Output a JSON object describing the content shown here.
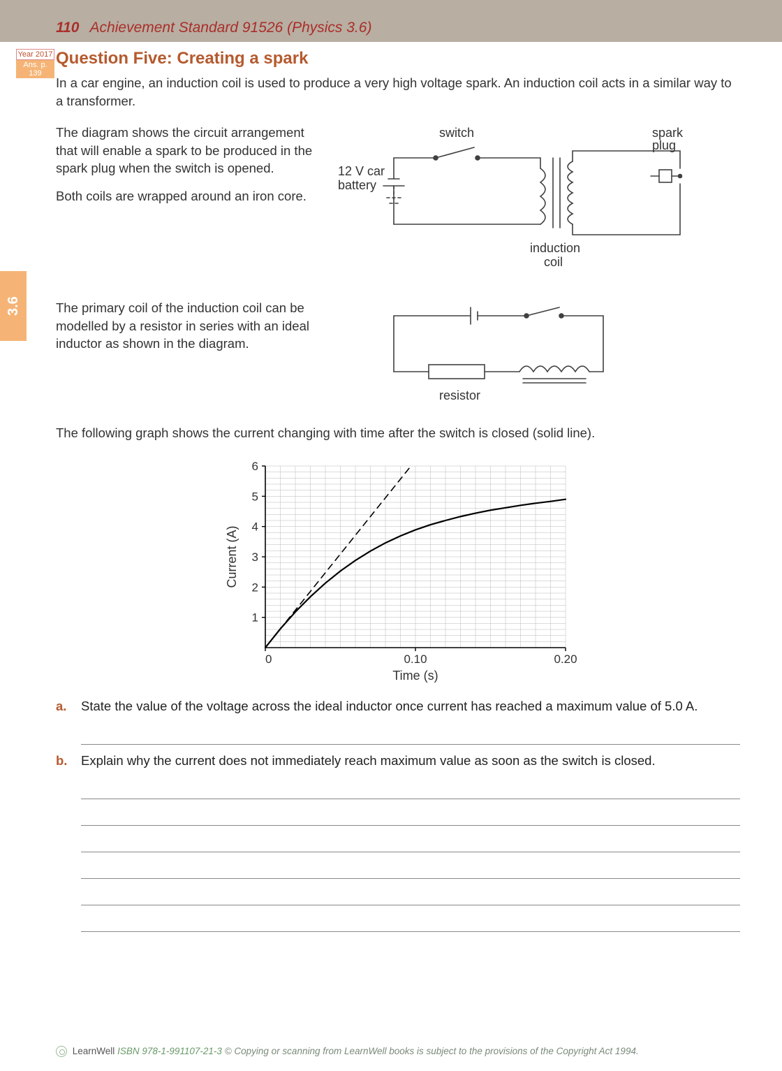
{
  "header": {
    "page_number": "110",
    "title": "Achievement Standard 91526 (Physics 3.6)"
  },
  "sidetab": "3.6",
  "yearbox": {
    "line1": "Year 2017",
    "line2": "Ans. p. 139"
  },
  "question": {
    "title": "Question Five: Creating a spark",
    "intro": "In a car engine, an induction coil is used to produce a very high voltage spark. An induction coil acts in a similar way to a transformer.",
    "para2a": "The diagram shows the circuit arrangement that will enable a spark to be produced in the spark plug when the switch is opened.",
    "para2b": "Both coils are wrapped around an iron core.",
    "para3": "The primary coil of the induction coil can be modelled by a resistor in series with an ideal inductor as shown in the diagram.",
    "para4": "The following graph shows the current changing with time after the switch is closed (solid line)."
  },
  "diagram1": {
    "labels": {
      "switch": "switch",
      "battery1": "12 V car",
      "battery2": "battery",
      "spark1": "spark",
      "spark2": "plug",
      "coil1": "induction",
      "coil2": "coil"
    },
    "stroke": "#404040"
  },
  "diagram2": {
    "label_resistor": "resistor",
    "stroke": "#404040"
  },
  "chart": {
    "type": "line",
    "xlabel": "Time (s)",
    "ylabel": "Current (A)",
    "xlim": [
      0,
      0.2
    ],
    "ylim": [
      0,
      6
    ],
    "xticks": [
      0,
      0.1,
      0.2
    ],
    "xtick_labels": [
      "0",
      "0.10",
      "0.20"
    ],
    "yticks": [
      1,
      2,
      3,
      4,
      5,
      6
    ],
    "minor_x_divisions": 20,
    "minor_y_divisions_per_unit": 5,
    "grid_color": "#b8b8b8",
    "axis_color": "#000000",
    "background_color": "#ffffff",
    "series": [
      {
        "name": "current",
        "style": "solid",
        "color": "#000000",
        "line_width": 2.2,
        "points": [
          [
            0,
            0
          ],
          [
            0.01,
            0.62
          ],
          [
            0.02,
            1.18
          ],
          [
            0.03,
            1.68
          ],
          [
            0.04,
            2.13
          ],
          [
            0.05,
            2.53
          ],
          [
            0.06,
            2.88
          ],
          [
            0.07,
            3.19
          ],
          [
            0.08,
            3.46
          ],
          [
            0.09,
            3.69
          ],
          [
            0.1,
            3.89
          ],
          [
            0.11,
            4.06
          ],
          [
            0.12,
            4.2
          ],
          [
            0.13,
            4.33
          ],
          [
            0.14,
            4.44
          ],
          [
            0.15,
            4.54
          ],
          [
            0.16,
            4.62
          ],
          [
            0.17,
            4.7
          ],
          [
            0.18,
            4.77
          ],
          [
            0.19,
            4.83
          ],
          [
            0.2,
            4.9
          ]
        ]
      },
      {
        "name": "initial-slope",
        "style": "dashed",
        "color": "#000000",
        "line_width": 1.6,
        "points": [
          [
            0,
            0
          ],
          [
            0.097,
            6.0
          ]
        ]
      }
    ],
    "label_fontsize": 18,
    "tick_fontsize": 17
  },
  "parts": {
    "a": "State the value of the voltage across the ideal inductor once current has reached a maximum value of 5.0 A.",
    "b": "Explain why the current does not immediately reach maximum value as soon as the switch is closed."
  },
  "answer_lines": {
    "a": 1,
    "b": 6
  },
  "footer": {
    "brand": "LearnWell",
    "isbn": "ISBN 978-1-991107-21-3",
    "notice": "© Copying or scanning from LearnWell books is subject to the provisions of the Copyright Act 1994."
  }
}
